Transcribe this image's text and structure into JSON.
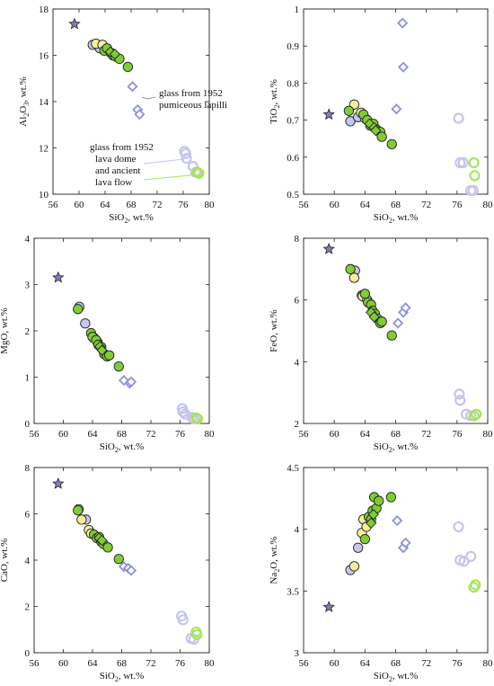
{
  "colors": {
    "axis": "#222222",
    "glass_diamond": "#8f8fe0",
    "dome_glass_circle": "#c5c5ee",
    "ancient_glass_circle": "#a6e55a",
    "rock_green": "#7fcc33",
    "rock_yellow": "#f4f09a",
    "rock_lilac": "#c7c7ee",
    "star": "#7f7fb6"
  },
  "annotations": {
    "pumiceous_line1": "glass from 1952",
    "pumiceous_line2": "pumiceous lapilli",
    "dome_line1": "glass from 1952",
    "dome_line2": "lava dome",
    "dome_line3": "and ancient",
    "dome_line4": "lava flow"
  },
  "chart_data": [
    {
      "type": "scatter",
      "xlabel": "SiO",
      "xlabel_sub": "2",
      "xlabel_suffix": ", wt.%",
      "ylabel": "Al",
      "ylabel_sub1": "2",
      "ylabel_mid": "O",
      "ylabel_sub2": "3",
      "ylabel_suffix": ", wt.%",
      "xlim": [
        56,
        80
      ],
      "ylim": [
        10,
        18
      ],
      "xticks": [
        56,
        60,
        64,
        68,
        72,
        76,
        80
      ],
      "yticks": [
        10,
        12,
        14,
        16,
        18
      ],
      "series": [
        {
          "marker": "star",
          "points": [
            [
              59.3,
              17.35
            ]
          ]
        },
        {
          "marker": "circle-lilac",
          "points": [
            [
              62.1,
              16.45
            ],
            [
              63.2,
              16.3
            ]
          ]
        },
        {
          "marker": "circle-yellow",
          "points": [
            [
              62.6,
              16.5
            ],
            [
              63.6,
              16.45
            ]
          ]
        },
        {
          "marker": "circle-green",
          "points": [
            [
              63.9,
              16.2
            ],
            [
              64.3,
              16.3
            ],
            [
              64.9,
              16.1
            ],
            [
              65.2,
              16.0
            ],
            [
              65.6,
              15.95
            ],
            [
              66.2,
              15.85
            ],
            [
              67.5,
              15.5
            ]
          ]
        },
        {
          "marker": "diamond-green",
          "points": [
            [
              64.8,
              16.15
            ],
            [
              65.5,
              16.05
            ]
          ]
        },
        {
          "marker": "diamond-glass",
          "points": [
            [
              68.2,
              14.65
            ],
            [
              69.0,
              13.65
            ],
            [
              69.3,
              13.45
            ]
          ]
        },
        {
          "marker": "circle-glass",
          "points": [
            [
              76.2,
              11.85
            ],
            [
              76.4,
              11.75
            ],
            [
              76.5,
              11.55
            ],
            [
              77.5,
              11.2
            ],
            [
              77.9,
              10.95
            ]
          ]
        },
        {
          "marker": "circle-ancient",
          "points": [
            [
              78.2,
              10.95
            ],
            [
              78.4,
              10.9
            ]
          ]
        }
      ]
    },
    {
      "type": "scatter",
      "xlabel": "SiO",
      "xlabel_sub": "2",
      "xlabel_suffix": ", wt.%",
      "ylabel": "TiO",
      "ylabel_sub1": "2",
      "ylabel_mid": "",
      "ylabel_sub2": "",
      "ylabel_suffix": ", wt.%",
      "xlim": [
        56,
        80
      ],
      "ylim": [
        0.5,
        1.0
      ],
      "xticks": [
        56,
        60,
        64,
        68,
        72,
        76,
        80
      ],
      "yticks": [
        0.5,
        0.6,
        0.7,
        0.8,
        0.9,
        1.0
      ],
      "series": [
        {
          "marker": "star",
          "points": [
            [
              59.3,
              0.715
            ]
          ]
        },
        {
          "marker": "circle-lilac",
          "points": [
            [
              62.1,
              0.697
            ],
            [
              63.1,
              0.708
            ]
          ]
        },
        {
          "marker": "circle-yellow",
          "points": [
            [
              62.6,
              0.742
            ],
            [
              63.5,
              0.72
            ],
            [
              64.0,
              0.705
            ]
          ]
        },
        {
          "marker": "circle-green",
          "points": [
            [
              61.9,
              0.725
            ],
            [
              63.8,
              0.715
            ],
            [
              64.3,
              0.7
            ],
            [
              64.7,
              0.685
            ],
            [
              65.1,
              0.69
            ],
            [
              65.5,
              0.675
            ],
            [
              66.0,
              0.668
            ],
            [
              66.2,
              0.655
            ],
            [
              67.5,
              0.635
            ]
          ]
        },
        {
          "marker": "diamond-green",
          "points": [
            [
              64.6,
              0.69
            ],
            [
              65.2,
              0.68
            ],
            [
              65.4,
              0.672
            ]
          ]
        },
        {
          "marker": "diamond-glass",
          "points": [
            [
              68.1,
              0.73
            ],
            [
              69.0,
              0.843
            ],
            [
              68.9,
              0.962
            ]
          ]
        },
        {
          "marker": "circle-glass",
          "points": [
            [
              76.2,
              0.705
            ],
            [
              76.4,
              0.585
            ],
            [
              76.8,
              0.585
            ],
            [
              77.8,
              0.51
            ],
            [
              78.1,
              0.51
            ]
          ]
        },
        {
          "marker": "circle-ancient",
          "points": [
            [
              78.2,
              0.585
            ],
            [
              78.3,
              0.55
            ]
          ]
        }
      ]
    },
    {
      "type": "scatter",
      "xlabel": "SiO",
      "xlabel_sub": "2",
      "xlabel_suffix": ", wt.%",
      "ylabel": "MgO",
      "ylabel_sub1": "",
      "ylabel_mid": "",
      "ylabel_sub2": "",
      "ylabel_suffix": ", wt.%",
      "xlim": [
        56,
        80
      ],
      "ylim": [
        0,
        4
      ],
      "xticks": [
        56,
        60,
        64,
        68,
        72,
        76,
        80
      ],
      "yticks": [
        0,
        1,
        2,
        3,
        4
      ],
      "series": [
        {
          "marker": "star",
          "points": [
            [
              59.3,
              3.15
            ]
          ]
        },
        {
          "marker": "circle-lilac",
          "points": [
            [
              62.2,
              2.52
            ],
            [
              63.0,
              2.16
            ]
          ]
        },
        {
          "marker": "circle-yellow",
          "points": [
            [
              64.2,
              1.85
            ],
            [
              64.7,
              1.75
            ]
          ]
        },
        {
          "marker": "circle-green",
          "points": [
            [
              62.0,
              2.47
            ],
            [
              63.8,
              1.95
            ],
            [
              64.0,
              1.87
            ],
            [
              64.5,
              1.8
            ],
            [
              64.8,
              1.7
            ],
            [
              65.2,
              1.65
            ],
            [
              65.6,
              1.5
            ],
            [
              66.0,
              1.45
            ],
            [
              66.3,
              1.47
            ],
            [
              67.6,
              1.23
            ]
          ]
        },
        {
          "marker": "diamond-green",
          "points": [
            [
              65.0,
              1.66
            ],
            [
              65.3,
              1.58
            ]
          ]
        },
        {
          "marker": "diamond-glass",
          "points": [
            [
              68.3,
              0.93
            ],
            [
              69.1,
              0.87
            ],
            [
              69.3,
              0.9
            ]
          ]
        },
        {
          "marker": "circle-glass",
          "points": [
            [
              76.3,
              0.32
            ],
            [
              76.4,
              0.25
            ],
            [
              76.7,
              0.2
            ],
            [
              77.6,
              0.13
            ],
            [
              77.9,
              0.1
            ]
          ]
        },
        {
          "marker": "circle-ancient",
          "points": [
            [
              78.2,
              0.12
            ],
            [
              78.4,
              0.1
            ]
          ]
        }
      ]
    },
    {
      "type": "scatter",
      "xlabel": "SiO",
      "xlabel_sub": "2",
      "xlabel_suffix": ", wt.%",
      "ylabel": "FeO",
      "ylabel_sub1": "",
      "ylabel_mid": "",
      "ylabel_sub2": "",
      "ylabel_suffix": ", wt.%",
      "xlim": [
        56,
        80
      ],
      "ylim": [
        2,
        8
      ],
      "xticks": [
        56,
        60,
        64,
        68,
        72,
        76,
        80
      ],
      "yticks": [
        2,
        4,
        6,
        8
      ],
      "series": [
        {
          "marker": "star",
          "points": [
            [
              59.3,
              7.65
            ]
          ]
        },
        {
          "marker": "circle-lilac",
          "points": [
            [
              62.7,
              6.95
            ],
            [
              63.6,
              6.15
            ]
          ]
        },
        {
          "marker": "circle-yellow",
          "points": [
            [
              62.6,
              6.72
            ],
            [
              63.7,
              6.12
            ],
            [
              64.3,
              6.0
            ]
          ]
        },
        {
          "marker": "circle-green",
          "points": [
            [
              62.1,
              7.0
            ],
            [
              64.0,
              6.2
            ],
            [
              64.4,
              5.92
            ],
            [
              64.8,
              5.85
            ],
            [
              65.0,
              5.65
            ],
            [
              65.3,
              5.55
            ],
            [
              65.6,
              5.4
            ],
            [
              66.0,
              5.25
            ],
            [
              66.2,
              5.3
            ],
            [
              67.5,
              4.85
            ]
          ]
        },
        {
          "marker": "diamond-green",
          "points": [
            [
              64.8,
              5.6
            ],
            [
              65.2,
              5.45
            ]
          ]
        },
        {
          "marker": "diamond-glass",
          "points": [
            [
              68.3,
              5.25
            ],
            [
              69.0,
              5.6
            ],
            [
              69.3,
              5.75
            ]
          ]
        },
        {
          "marker": "circle-glass",
          "points": [
            [
              76.3,
              2.95
            ],
            [
              76.4,
              2.75
            ],
            [
              77.2,
              2.3
            ],
            [
              77.8,
              2.25
            ]
          ]
        },
        {
          "marker": "circle-ancient",
          "points": [
            [
              78.2,
              2.25
            ],
            [
              78.5,
              2.3
            ]
          ]
        }
      ]
    },
    {
      "type": "scatter",
      "xlabel": "SiO",
      "xlabel_sub": "2",
      "xlabel_suffix": ", wt.%",
      "ylabel": "CaO",
      "ylabel_sub1": "",
      "ylabel_mid": "",
      "ylabel_sub2": "",
      "ylabel_suffix": ", wt.%",
      "xlim": [
        56,
        80
      ],
      "ylim": [
        0,
        8
      ],
      "xticks": [
        56,
        60,
        64,
        68,
        72,
        76,
        80
      ],
      "yticks": [
        0,
        2,
        4,
        6,
        8
      ],
      "series": [
        {
          "marker": "star",
          "points": [
            [
              59.3,
              7.3
            ]
          ]
        },
        {
          "marker": "circle-lilac",
          "points": [
            [
              62.1,
              6.2
            ],
            [
              63.1,
              5.75
            ]
          ]
        },
        {
          "marker": "circle-yellow",
          "points": [
            [
              62.5,
              5.75
            ],
            [
              63.5,
              5.3
            ],
            [
              63.8,
              5.15
            ]
          ]
        },
        {
          "marker": "circle-green",
          "points": [
            [
              62.0,
              6.15
            ],
            [
              64.2,
              5.1
            ],
            [
              64.6,
              4.95
            ],
            [
              64.9,
              5.0
            ],
            [
              65.2,
              4.8
            ],
            [
              65.5,
              4.7
            ],
            [
              66.1,
              4.55
            ],
            [
              67.6,
              4.05
            ]
          ]
        },
        {
          "marker": "diamond-green",
          "points": [
            [
              64.9,
              4.95
            ],
            [
              65.3,
              4.85
            ]
          ]
        },
        {
          "marker": "diamond-glass",
          "points": [
            [
              68.3,
              3.72
            ],
            [
              68.9,
              3.65
            ],
            [
              69.3,
              3.55
            ]
          ]
        },
        {
          "marker": "circle-glass",
          "points": [
            [
              76.2,
              1.58
            ],
            [
              76.4,
              1.42
            ],
            [
              77.5,
              0.62
            ],
            [
              77.9,
              0.58
            ]
          ]
        },
        {
          "marker": "circle-ancient",
          "points": [
            [
              78.2,
              0.9
            ],
            [
              78.3,
              0.78
            ]
          ]
        }
      ]
    },
    {
      "type": "scatter",
      "xlabel": "SiO",
      "xlabel_sub": "2",
      "xlabel_suffix": ", wt.%",
      "ylabel": "Na",
      "ylabel_sub1": "2",
      "ylabel_mid": "O",
      "ylabel_sub2": "",
      "ylabel_suffix": ", wt.%",
      "xlim": [
        56,
        80
      ],
      "ylim": [
        3,
        4.5
      ],
      "xticks": [
        56,
        60,
        64,
        68,
        72,
        76,
        80
      ],
      "yticks": [
        3,
        3.5,
        4,
        4.5
      ],
      "series": [
        {
          "marker": "star",
          "points": [
            [
              59.3,
              3.37
            ]
          ]
        },
        {
          "marker": "circle-lilac",
          "points": [
            [
              62.1,
              3.67
            ],
            [
              63.1,
              3.85
            ]
          ]
        },
        {
          "marker": "circle-yellow",
          "points": [
            [
              62.6,
              3.7
            ],
            [
              63.6,
              3.97
            ],
            [
              63.8,
              4.08
            ],
            [
              64.2,
              4.02
            ]
          ]
        },
        {
          "marker": "circle-green",
          "points": [
            [
              64.0,
              3.92
            ],
            [
              64.5,
              4.1
            ],
            [
              64.8,
              4.08
            ],
            [
              65.0,
              4.15
            ],
            [
              65.2,
              4.26
            ],
            [
              65.5,
              4.17
            ],
            [
              65.8,
              4.23
            ],
            [
              67.4,
              4.26
            ]
          ]
        },
        {
          "marker": "diamond-green",
          "points": [
            [
              64.8,
              4.05
            ],
            [
              65.1,
              4.12
            ]
          ]
        },
        {
          "marker": "diamond-glass",
          "points": [
            [
              68.2,
              4.07
            ],
            [
              69.0,
              3.85
            ],
            [
              69.3,
              3.89
            ]
          ]
        },
        {
          "marker": "circle-glass",
          "points": [
            [
              76.2,
              4.02
            ],
            [
              76.4,
              3.75
            ],
            [
              76.9,
              3.74
            ],
            [
              77.8,
              3.78
            ]
          ]
        },
        {
          "marker": "circle-ancient",
          "points": [
            [
              78.2,
              3.53
            ],
            [
              78.4,
              3.55
            ]
          ]
        }
      ]
    }
  ]
}
